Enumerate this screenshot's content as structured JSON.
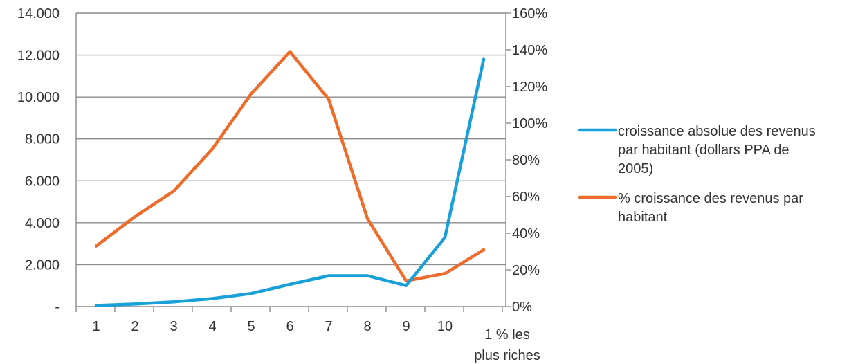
{
  "chart_data": {
    "type": "line",
    "title": "",
    "xlabel": "",
    "ylabel": "",
    "categories": [
      "1",
      "2",
      "3",
      "4",
      "5",
      "6",
      "7",
      "8",
      "9",
      "10",
      "1 % les plus riches"
    ],
    "category_label_lines": [
      [
        "1"
      ],
      [
        "2"
      ],
      [
        "3"
      ],
      [
        "4"
      ],
      [
        "5"
      ],
      [
        "6"
      ],
      [
        "7"
      ],
      [
        "8"
      ],
      [
        "9"
      ],
      [
        "10"
      ],
      [
        "1 % les",
        "plus riches"
      ]
    ],
    "y_left": {
      "range": [
        0,
        14000
      ],
      "tick_values": [
        0,
        2000,
        4000,
        6000,
        8000,
        10000,
        12000,
        14000
      ],
      "tick_labels": [
        "-",
        "2.000",
        "4.000",
        "6.000",
        "8.000",
        "10.000",
        "12.000",
        "14.000"
      ]
    },
    "y_right": {
      "range": [
        0,
        160
      ],
      "tick_values": [
        0,
        20,
        40,
        60,
        80,
        100,
        120,
        140,
        160
      ],
      "tick_labels": [
        "0%",
        "20%",
        "40%",
        "60%",
        "80%",
        "100%",
        "120%",
        "140%",
        "160%"
      ]
    },
    "grid": true,
    "legend_position": "right",
    "series": [
      {
        "name": "croissance absolue des revenus par habitant (dollars PPA de 2005)",
        "legend_lines": [
          "croissance absolue des revenus",
          "par habitant (dollars PPA de",
          "2005)"
        ],
        "axis": "left",
        "color": "#1aa0d8",
        "values": [
          50,
          120,
          220,
          380,
          620,
          1060,
          1470,
          1470,
          1000,
          3300,
          11800
        ]
      },
      {
        "name": "% croissance des revenus par habitant",
        "legend_lines": [
          "% croissance des revenus par",
          "habitant"
        ],
        "axis": "right",
        "color": "#ed6b2b",
        "values": [
          33,
          49,
          63,
          86,
          116,
          139,
          113,
          48,
          14,
          18,
          31
        ]
      }
    ]
  }
}
